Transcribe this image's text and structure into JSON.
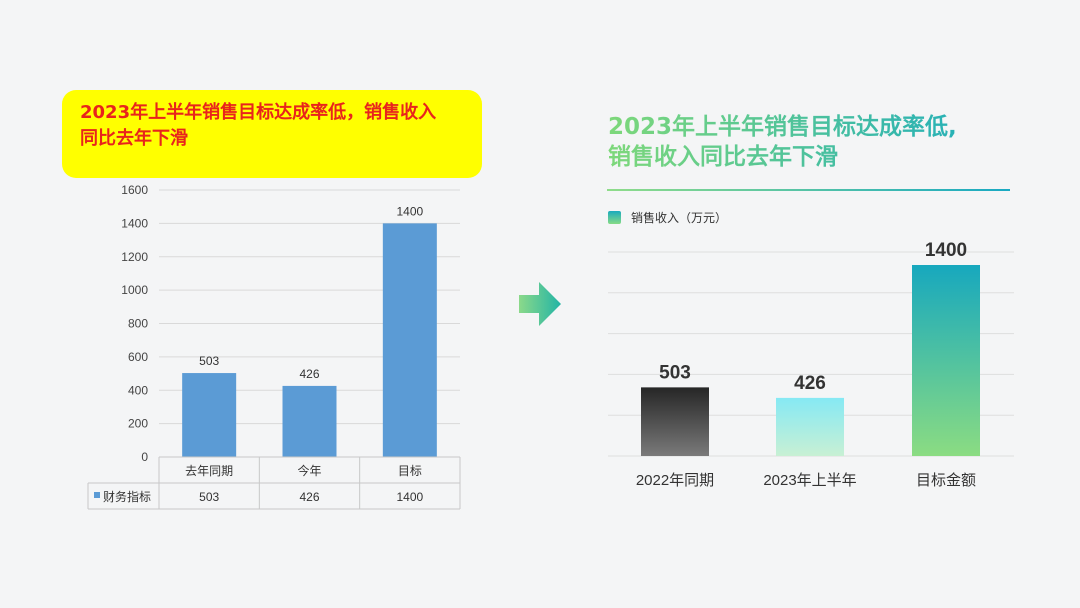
{
  "left_panel": {
    "callout_line1": "2023年上半年销售目标达成率低，销售收入",
    "callout_line2": "同比去年下滑",
    "callout_bg": "#ffff00",
    "callout_color": "#e8241c"
  },
  "right_panel": {
    "title_line1": "2023年上半年销售目标达成率低,",
    "title_line2": "销售收入同比去年下滑",
    "legend_label": "销售收入（万元）"
  },
  "chart_data": [
    {
      "type": "bar",
      "categories": [
        "去年同期",
        "今年",
        "目标"
      ],
      "series": [
        {
          "name": "财务指标",
          "values": [
            503,
            426,
            1400
          ]
        }
      ],
      "ylim": [
        0,
        1600
      ],
      "yticks": [
        0,
        200,
        400,
        600,
        800,
        1000,
        1200,
        1400,
        1600
      ],
      "grid": true,
      "data_table": true,
      "bar_color": "#5b9bd5"
    },
    {
      "type": "bar",
      "categories": [
        "2022年同期",
        "2023年上半年",
        "目标金额"
      ],
      "series": [
        {
          "name": "销售收入（万元）",
          "values": [
            503,
            426,
            1400
          ]
        }
      ],
      "grid": true,
      "legend": "top-left"
    }
  ]
}
